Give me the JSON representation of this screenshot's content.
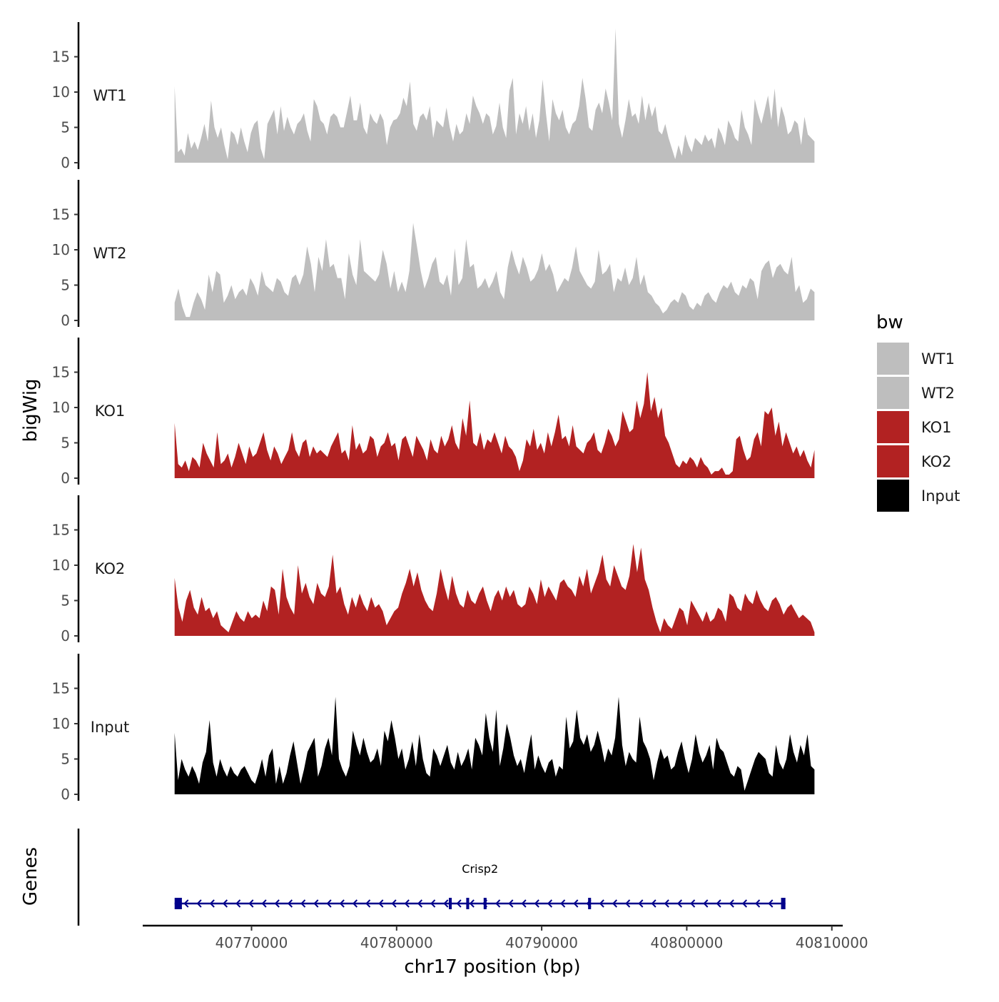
{
  "chart_data": {
    "type": "area",
    "chromosome": "chr17",
    "xlabel": "chr17 position (bp)",
    "ylabel": "bigWig",
    "genes_ylabel": "Genes",
    "xlim": [
      40762500,
      40810750
    ],
    "data_xrange": [
      40764700,
      40808800
    ],
    "xticks": [
      40770000,
      40780000,
      40790000,
      40800000,
      40810000
    ],
    "xtick_labels": [
      "40770000",
      "40780000",
      "40790000",
      "40800000",
      "40810000"
    ],
    "ylim": [
      0,
      19.5
    ],
    "yticks": [
      0,
      5,
      10,
      15
    ],
    "ytick_labels": [
      "0",
      "5",
      "10",
      "15"
    ],
    "legend": {
      "title": "bw",
      "entries": [
        {
          "label": "WT1",
          "color": "#bebebe"
        },
        {
          "label": "WT2",
          "color": "#bebebe"
        },
        {
          "label": "KO1",
          "color": "#b22222"
        },
        {
          "label": "KO2",
          "color": "#b22222"
        },
        {
          "label": "Input",
          "color": "#000000"
        }
      ]
    },
    "series": [
      {
        "name": "WT1",
        "color": "#bebebe",
        "values": [
          10.8,
          1.5,
          2,
          1,
          4.2,
          2,
          3,
          1.8,
          3.5,
          5.5,
          3,
          8.8,
          5,
          3.5,
          5,
          2.5,
          0.5,
          4.5,
          4,
          2.5,
          5,
          3,
          1.5,
          4.2,
          5.5,
          6,
          2,
          0.5,
          5.5,
          6.5,
          7.5,
          4,
          8,
          4.5,
          6.5,
          5,
          4,
          5.5,
          6,
          7,
          4.5,
          3,
          9,
          8,
          6,
          5.5,
          4,
          6.5,
          7,
          6.5,
          5,
          5,
          7.2,
          9.5,
          6,
          6,
          8.5,
          5,
          4,
          7,
          6,
          5.5,
          7,
          6,
          2.5,
          5,
          6,
          6.2,
          7,
          9.2,
          8,
          11.5,
          5.5,
          4.5,
          6.5,
          7,
          6,
          8,
          3.5,
          6,
          5.5,
          5,
          7.8,
          5,
          3,
          5.5,
          4,
          4.5,
          7,
          5.5,
          9.5,
          8,
          7,
          5.5,
          7,
          6.5,
          4,
          5.2,
          8.5,
          5,
          3.5,
          10.2,
          12,
          4,
          7,
          5.5,
          8,
          4.5,
          7,
          3.5,
          6,
          11.8,
          7,
          3,
          9,
          7,
          6,
          7.5,
          5,
          4,
          5.5,
          6,
          8,
          12,
          9,
          5,
          4.5,
          7.5,
          8.5,
          7,
          10.5,
          8.5,
          6,
          19,
          5.5,
          3.5,
          6,
          9,
          6.5,
          7,
          5.5,
          9.5,
          6,
          8.5,
          6.5,
          8,
          4.5,
          4,
          5.5,
          3.5,
          2,
          0.5,
          2.5,
          1,
          4,
          2.5,
          1.5,
          3.5,
          3,
          2.5,
          4,
          3,
          3.5,
          2,
          5,
          4,
          2.5,
          6,
          5,
          3.5,
          3,
          7.5,
          5,
          4,
          2.5,
          9,
          7,
          5.5,
          7.5,
          9.5,
          6,
          10.5,
          5,
          8,
          6.5,
          4,
          4.5,
          6,
          5.5,
          2.5,
          6.5,
          4,
          3.5,
          3
        ]
      },
      {
        "name": "WT2",
        "color": "#bebebe",
        "values": [
          2.5,
          4.5,
          2,
          0.5,
          0.5,
          2.5,
          4,
          3,
          1.5,
          6.5,
          4,
          7,
          6.5,
          2.5,
          3.5,
          5,
          3,
          4,
          4.5,
          3.5,
          6,
          5,
          3.5,
          7,
          5,
          4.5,
          4,
          6,
          5.5,
          4,
          3.5,
          6,
          6.5,
          5,
          6.5,
          10.5,
          8,
          4,
          9,
          7,
          11.5,
          7.5,
          8,
          6,
          6,
          3,
          9.5,
          6.5,
          5,
          11.5,
          7,
          6.5,
          6,
          5.5,
          6.5,
          10,
          8,
          4.5,
          7,
          4,
          5.5,
          4,
          7,
          13.8,
          10.5,
          7,
          4.5,
          6,
          8,
          9,
          5.5,
          5,
          6.5,
          3.5,
          10.2,
          5,
          6,
          11.5,
          7.5,
          8,
          4.5,
          5,
          6,
          4.5,
          5.5,
          7,
          4,
          3,
          7.5,
          10,
          8,
          6.5,
          9,
          7.5,
          5.5,
          6,
          7.2,
          9.5,
          7,
          8,
          6.5,
          4,
          5,
          6,
          5.5,
          7.5,
          10.5,
          7,
          6,
          5,
          4.5,
          5.5,
          10,
          6.5,
          7,
          8,
          4,
          6,
          5.5,
          7.5,
          5,
          6,
          9,
          5,
          6.5,
          4,
          3.5,
          2.5,
          2,
          1,
          1.5,
          2.5,
          3,
          2.5,
          4,
          3.5,
          2,
          1.5,
          2.5,
          2,
          3.5,
          4,
          3,
          2.5,
          4,
          5,
          4.5,
          5.5,
          4,
          3.5,
          5,
          4.5,
          6,
          5.5,
          3,
          7,
          8,
          8.5,
          6,
          7.5,
          8,
          7,
          6.5,
          9,
          4,
          5,
          2.5,
          3,
          4.5,
          4
        ]
      },
      {
        "name": "KO1",
        "color": "#b22222",
        "values": [
          7.8,
          2,
          1.5,
          2.5,
          1,
          3,
          2.5,
          1.5,
          5,
          3.5,
          2.5,
          1.5,
          6.5,
          2,
          2.5,
          3.5,
          1.5,
          3,
          5,
          3.5,
          2,
          4.5,
          3,
          3.5,
          5,
          6.5,
          4,
          2.5,
          4.5,
          3.5,
          2,
          3,
          4,
          6.5,
          4,
          3,
          5,
          5.5,
          3,
          4.5,
          3.5,
          4,
          3.5,
          3,
          4.5,
          5.5,
          6.5,
          3.5,
          4,
          2.5,
          7.5,
          4,
          5,
          3.5,
          4,
          6,
          5.5,
          3,
          4.5,
          5,
          6.5,
          4.5,
          5,
          2.5,
          5.5,
          6,
          4.5,
          3,
          6,
          5,
          4,
          2.5,
          5.5,
          4,
          3.5,
          6,
          4.5,
          5.5,
          7.5,
          5,
          4,
          8.5,
          6,
          11,
          5,
          4.5,
          6.5,
          4,
          5.5,
          5,
          6.5,
          5,
          3.5,
          6,
          4.5,
          4,
          3,
          1,
          2.5,
          5.5,
          4.5,
          7,
          4,
          5,
          3.5,
          6.5,
          4.5,
          6.5,
          9,
          5.5,
          6,
          4.5,
          7.5,
          4.5,
          4,
          3.5,
          5,
          5.5,
          6.5,
          4,
          3.5,
          5,
          7,
          6,
          4.5,
          5.5,
          9.5,
          8,
          6.5,
          7,
          11,
          8.5,
          10.5,
          15,
          9.5,
          11.5,
          8.5,
          10,
          6,
          5,
          3.5,
          2,
          1.5,
          2.5,
          2,
          3,
          2.5,
          1.5,
          3,
          2,
          1.5,
          0.5,
          1,
          1,
          1.5,
          0.5,
          0.5,
          1,
          5.5,
          6,
          4,
          2.5,
          3,
          5.5,
          6.5,
          4.5,
          9.5,
          9,
          10,
          6,
          8,
          4.5,
          6.5,
          5,
          3.5,
          4.5,
          3,
          4,
          2.5,
          1.5,
          4
        ]
      },
      {
        "name": "KO2",
        "color": "#b22222",
        "values": [
          8.2,
          4,
          2,
          5,
          6.5,
          4,
          3,
          5.5,
          3.5,
          4,
          2.5,
          3.5,
          1.5,
          1,
          0.5,
          2,
          3.5,
          2.5,
          2,
          3.5,
          2.5,
          3,
          2.5,
          5,
          3.5,
          7,
          6.5,
          3,
          9.5,
          5.5,
          4,
          3,
          10,
          6,
          7.5,
          5.5,
          4.5,
          7.5,
          6,
          5.5,
          7,
          11.5,
          6,
          7,
          4.5,
          3,
          5.5,
          4,
          6,
          4.5,
          3.5,
          5.5,
          4,
          4.5,
          3.5,
          1.5,
          2.5,
          3.5,
          4,
          6,
          7.5,
          9.5,
          7,
          9,
          6.5,
          5,
          4,
          3.5,
          6,
          9.5,
          7,
          5,
          8.5,
          6,
          4.5,
          4,
          6.5,
          5,
          4.5,
          6,
          7,
          5,
          3.5,
          5.5,
          6.5,
          5,
          7,
          5.5,
          6.5,
          4.5,
          4,
          4.5,
          7,
          6,
          4.5,
          8,
          5.5,
          7,
          6,
          5,
          7.5,
          8,
          7,
          6.5,
          5.5,
          8.5,
          7,
          9.5,
          6,
          7.5,
          9,
          11.5,
          8,
          7,
          10,
          8.5,
          7,
          6.5,
          8.5,
          13,
          9,
          12.5,
          8,
          6.5,
          4,
          2,
          0.5,
          2.5,
          1.5,
          1,
          2.5,
          4,
          3.5,
          1.5,
          5,
          4,
          3,
          2,
          3.5,
          2,
          2.5,
          4,
          3.5,
          2,
          6,
          5.5,
          4,
          3.5,
          6,
          5,
          4.5,
          6.5,
          5,
          4,
          3.5,
          5,
          5.5,
          4.5,
          3,
          4,
          4.5,
          3.5,
          2.5,
          3,
          2.5,
          2,
          0.5
        ]
      },
      {
        "name": "Input",
        "color": "#000000",
        "values": [
          8.7,
          2,
          5,
          3.5,
          2.5,
          4,
          3,
          1.5,
          4.5,
          6,
          10.5,
          4.5,
          2.5,
          5,
          3.5,
          2.5,
          4,
          3,
          2.5,
          3.5,
          4,
          3,
          2,
          1.5,
          3,
          5,
          2.5,
          5.5,
          6.5,
          1.5,
          4,
          1.5,
          3,
          5.5,
          7.5,
          4.5,
          1.5,
          3.5,
          6,
          7,
          8,
          2.5,
          4,
          6.5,
          8,
          5.5,
          13.8,
          5,
          3.5,
          2.5,
          4,
          9,
          7,
          5.5,
          8,
          6,
          4.5,
          5,
          6.5,
          4,
          9,
          7.5,
          10.5,
          8,
          5,
          6.5,
          3.5,
          5,
          7.5,
          4,
          8.5,
          5,
          3,
          2.5,
          6.5,
          5.5,
          4,
          5.5,
          7,
          4.5,
          3.5,
          6,
          4,
          5,
          6.5,
          3.5,
          8,
          7,
          5.5,
          11.5,
          8,
          6,
          12,
          4,
          6.5,
          10,
          8,
          5.5,
          4,
          5,
          3,
          6,
          8.5,
          3.5,
          5.5,
          4,
          3,
          4.5,
          5,
          2.5,
          4,
          3.5,
          11,
          6.5,
          7.5,
          12,
          8,
          7,
          8.5,
          6,
          7,
          9,
          7,
          4.5,
          6.5,
          5.5,
          8,
          13.8,
          7,
          4,
          6,
          5,
          4.5,
          11,
          7.5,
          6.5,
          5,
          2,
          4.5,
          6.5,
          5,
          5.5,
          3.5,
          4,
          6,
          7.5,
          5,
          3,
          5,
          8.5,
          6,
          4.5,
          5.5,
          7,
          3.5,
          8,
          6.5,
          6,
          4.5,
          3,
          2.5,
          4,
          3.5,
          0.5,
          2,
          3.5,
          5,
          6,
          5.5,
          5,
          3,
          2.5,
          7,
          4.5,
          3.5,
          5,
          8.5,
          6,
          4.5,
          7,
          5.5,
          8.5,
          4,
          3.5
        ]
      }
    ],
    "gene": {
      "name": "Crisp2",
      "color": "#00008b",
      "strand": "-",
      "start": 40764700,
      "end": 40806800,
      "exons": [
        [
          40764700,
          40765200
        ],
        [
          40783600,
          40783800
        ],
        [
          40784800,
          40785000
        ],
        [
          40786000,
          40786200
        ],
        [
          40793200,
          40793400
        ],
        [
          40806500,
          40806800
        ]
      ]
    }
  }
}
